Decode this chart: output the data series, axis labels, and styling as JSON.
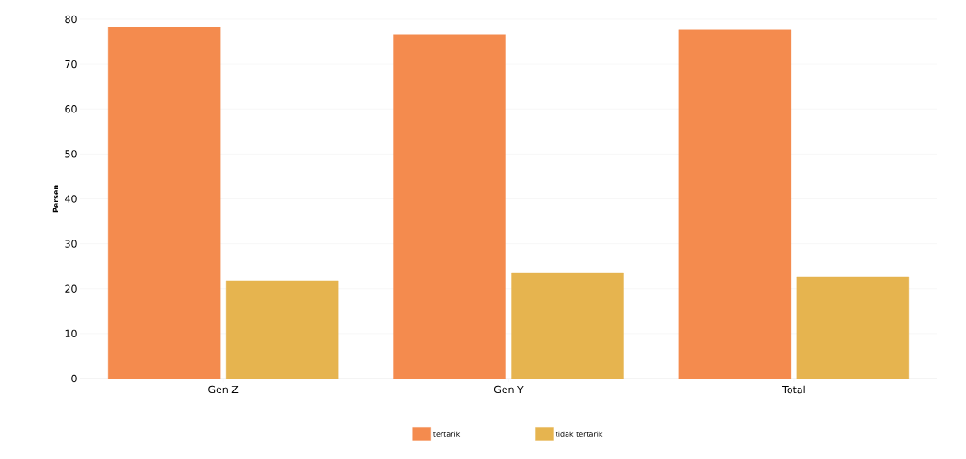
{
  "chart_data": {
    "type": "bar",
    "ylabel": "Persen",
    "categories": [
      "Gen Z",
      "Gen Y",
      "Total"
    ],
    "series": [
      {
        "name": "tertarik",
        "color": "#f48b4e",
        "values": [
          78.2,
          76.6,
          77.6
        ]
      },
      {
        "name": "tidak tertarik",
        "color": "#e6b44f",
        "values": [
          21.8,
          23.4,
          22.6
        ]
      }
    ],
    "ylim": [
      0,
      80
    ],
    "yticks": [
      0,
      10,
      20,
      30,
      40,
      50,
      60,
      70,
      80
    ],
    "grid": "y",
    "legend": "bottom"
  }
}
